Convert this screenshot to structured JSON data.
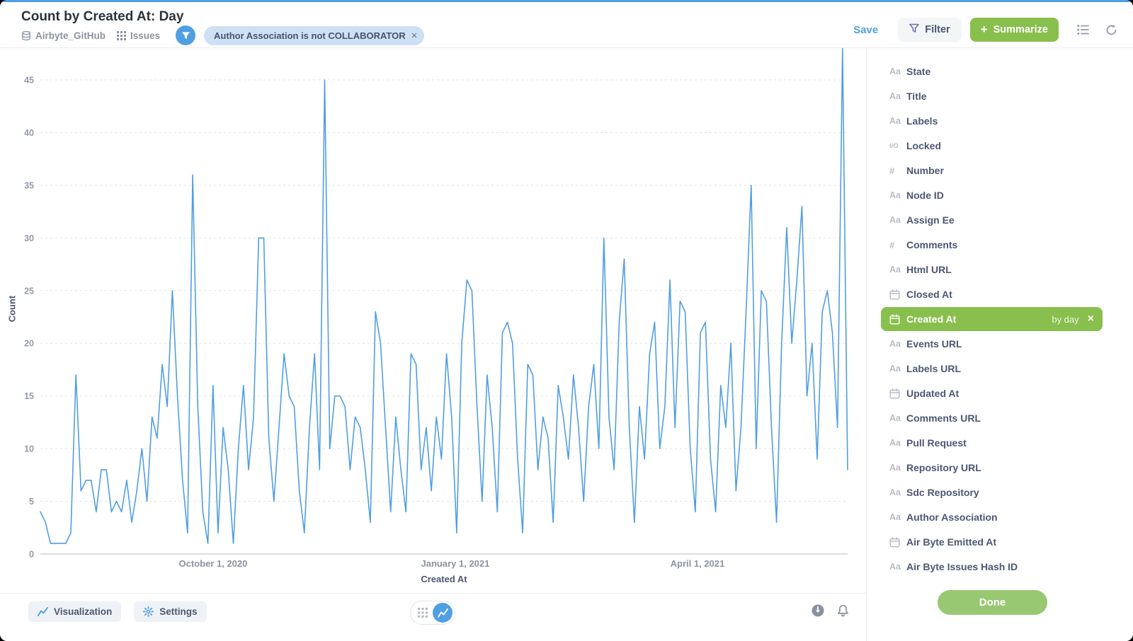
{
  "header": {
    "title": "Count by Created At: Day",
    "database": "Airbyte_GitHub",
    "table": "Issues",
    "filter_chip": "Author Association is not COLLABORATOR",
    "save_label": "Save",
    "filter_label": "Filter",
    "summarize_label": "Summarize"
  },
  "icons": {
    "close": "×",
    "plus": "+"
  },
  "chart_data": {
    "type": "line",
    "title": "Count by Created At: Day",
    "xlabel": "Created At",
    "ylabel": "Count",
    "ylim": [
      0,
      45
    ],
    "grid": "dashed-horizontal",
    "legend": "none",
    "line_color": "#509ee3",
    "y_ticks": [
      0,
      5,
      10,
      15,
      20,
      25,
      30,
      35,
      40,
      45
    ],
    "x_ticks": [
      {
        "label": "October 1, 2020",
        "pos": 0.214
      },
      {
        "label": "January 1, 2021",
        "pos": 0.514
      },
      {
        "label": "April 1, 2021",
        "pos": 0.814
      }
    ],
    "values": [
      4,
      3,
      1,
      1,
      1,
      1,
      2,
      17,
      6,
      7,
      7,
      4,
      8,
      8,
      4,
      5,
      4,
      7,
      3,
      6,
      10,
      5,
      13,
      11,
      18,
      14,
      25,
      15,
      7,
      2,
      36,
      14,
      4,
      1,
      16,
      2,
      12,
      8,
      1,
      10,
      16,
      8,
      13,
      30,
      30,
      11,
      5,
      12,
      19,
      15,
      14,
      6,
      2,
      12,
      19,
      8,
      45,
      10,
      15,
      15,
      14,
      8,
      13,
      12,
      8,
      3,
      23,
      20,
      12,
      4,
      13,
      8,
      4,
      19,
      18,
      8,
      12,
      6,
      13,
      9,
      19,
      13,
      2,
      20,
      26,
      25,
      14,
      5,
      17,
      12,
      4,
      21,
      22,
      20,
      9,
      2,
      18,
      17,
      8,
      13,
      11,
      3,
      16,
      13,
      9,
      17,
      12,
      5,
      14,
      18,
      10,
      30,
      13,
      8,
      22,
      28,
      12,
      3,
      14,
      9,
      19,
      22,
      10,
      14,
      26,
      12,
      24,
      23,
      10,
      4,
      21,
      22,
      9,
      4,
      16,
      12,
      20,
      6,
      12,
      23,
      35,
      10,
      25,
      24,
      12,
      3,
      20,
      31,
      20,
      26,
      33,
      15,
      20,
      9,
      23,
      25,
      21,
      12,
      48,
      8
    ]
  },
  "sidebar": {
    "type_glyphs": {
      "text": "Aa",
      "number": "#",
      "boolean": "I/O"
    },
    "fields": [
      {
        "label": "State",
        "type": "text"
      },
      {
        "label": "Title",
        "type": "text"
      },
      {
        "label": "Labels",
        "type": "text"
      },
      {
        "label": "Locked",
        "type": "boolean"
      },
      {
        "label": "Number",
        "type": "number"
      },
      {
        "label": "Node ID",
        "type": "text"
      },
      {
        "label": "Assign Ee",
        "type": "text"
      },
      {
        "label": "Comments",
        "type": "number"
      },
      {
        "label": "Html URL",
        "type": "text"
      },
      {
        "label": "Closed At",
        "type": "date"
      },
      {
        "label": "Created At",
        "type": "date",
        "selected": true,
        "badge": "by day"
      },
      {
        "label": "Events URL",
        "type": "text"
      },
      {
        "label": "Labels URL",
        "type": "text"
      },
      {
        "label": "Updated At",
        "type": "date"
      },
      {
        "label": "Comments URL",
        "type": "text"
      },
      {
        "label": "Pull Request",
        "type": "text"
      },
      {
        "label": "Repository URL",
        "type": "text"
      },
      {
        "label": "Sdc Repository",
        "type": "text"
      },
      {
        "label": "Author Association",
        "type": "text"
      },
      {
        "label": "Air Byte Emitted At",
        "type": "date"
      },
      {
        "label": "Air Byte Issues Hash ID",
        "type": "text"
      }
    ],
    "done_label": "Done"
  },
  "footer": {
    "visualization_label": "Visualization",
    "settings_label": "Settings"
  },
  "colors": {
    "brand_blue": "#509ee3",
    "green": "#88bf4d",
    "text_dark": "#4c5773",
    "text_gray": "#949aab",
    "chip_bg": "#cde0f4"
  }
}
